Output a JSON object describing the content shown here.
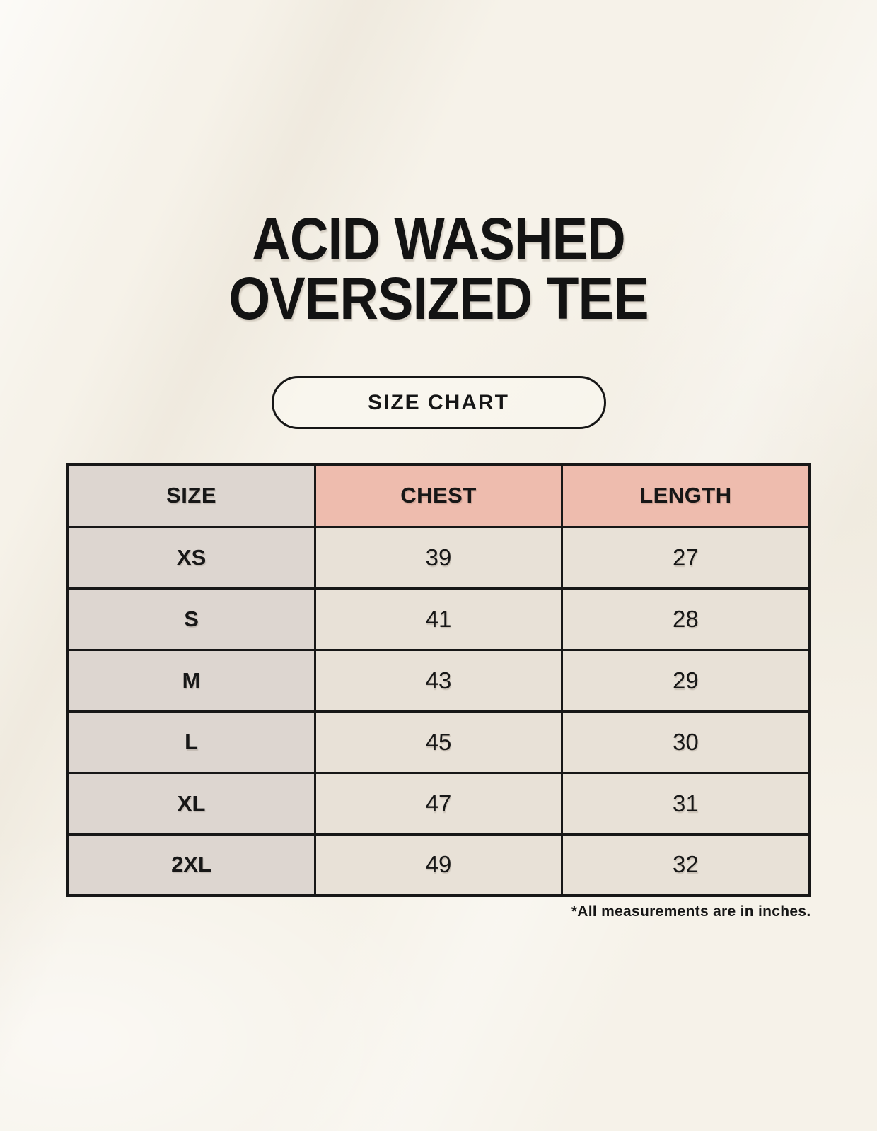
{
  "page": {
    "title": {
      "line1": "ACID WASHED",
      "line2": "OVERSIZED TEE"
    },
    "size_chart_button_label": "SIZE CHART",
    "footnote": "*All measurements are in inches."
  },
  "colors": {
    "page_bg": "#f6f2e9",
    "size_col_bg": "#ddd6d0",
    "accent_header_bg": "#eebcae",
    "cell_bg": "#e8e1d7",
    "border": "#171717",
    "text": "#171717"
  },
  "chart_data": {
    "type": "table",
    "title": "ACID WASHED OVERSIZED TEE",
    "subtitle": "SIZE CHART",
    "columns": [
      "SIZE",
      "CHEST",
      "LENGTH"
    ],
    "rows": [
      {
        "size": "XS",
        "chest": 39,
        "length": 27
      },
      {
        "size": "S",
        "chest": 41,
        "length": 28
      },
      {
        "size": "M",
        "chest": 43,
        "length": 29
      },
      {
        "size": "L",
        "chest": 45,
        "length": 30
      },
      {
        "size": "XL",
        "chest": 47,
        "length": 31
      },
      {
        "size": "2XL",
        "chest": 49,
        "length": 32
      }
    ],
    "units": "inches",
    "footnote": "*All measurements are in inches."
  }
}
